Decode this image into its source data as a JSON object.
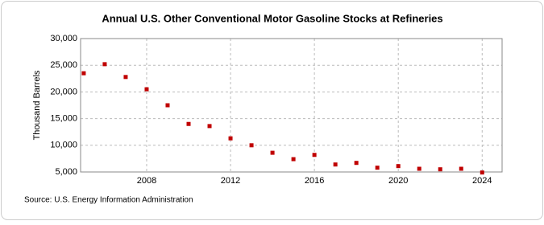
{
  "chart_data": {
    "type": "scatter",
    "title": "Annual U.S. Other Conventional Motor Gasoline Stocks at Refineries",
    "y_label": "Thousand Barrels",
    "source": "Source: U.S. Energy Information Administration",
    "x": [
      2005,
      2006,
      2007,
      2008,
      2009,
      2010,
      2011,
      2012,
      2013,
      2014,
      2015,
      2016,
      2017,
      2018,
      2019,
      2020,
      2021,
      2022,
      2023,
      2024
    ],
    "values": [
      23500,
      25200,
      22800,
      20500,
      17500,
      14000,
      13600,
      11300,
      10000,
      8600,
      7400,
      8200,
      6400,
      6700,
      5800,
      6100,
      5600,
      5500,
      5600,
      4900
    ],
    "color": "#c00000",
    "xlim": [
      2004.85,
      2024.95
    ],
    "xticks": [
      2008,
      2012,
      2016,
      2020,
      2024
    ],
    "ylim": [
      5000,
      30000
    ],
    "yticks": [
      {
        "value": 5000,
        "label": "5,000"
      },
      {
        "value": 10000,
        "label": "10,000"
      },
      {
        "value": 15000,
        "label": "15,000"
      },
      {
        "value": 20000,
        "label": "20,000"
      },
      {
        "value": 25000,
        "label": "25,000"
      },
      {
        "value": 30000,
        "label": "30,000"
      }
    ],
    "grid": true
  }
}
